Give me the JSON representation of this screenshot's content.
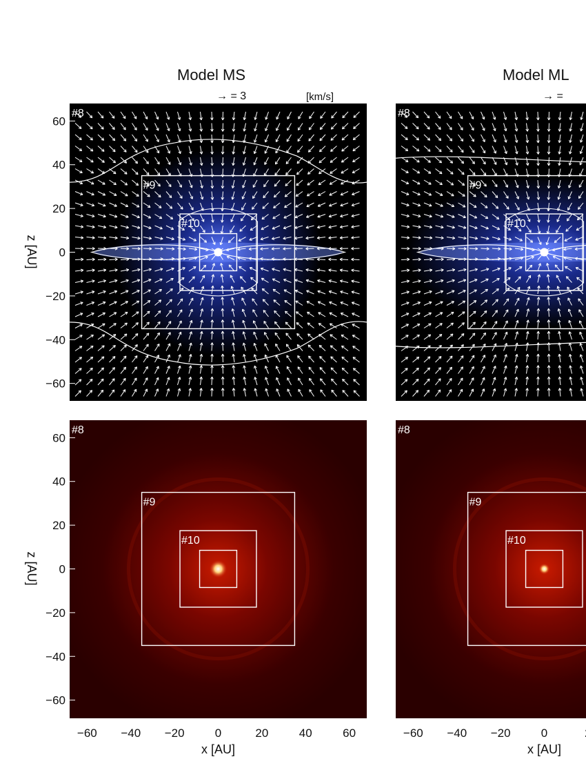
{
  "figure": {
    "models": [
      {
        "title": "Model MS",
        "vector_key": "→ = 3",
        "vector_unit": "[km/s]"
      },
      {
        "title": "Model ML",
        "vector_key": "→ ="
      }
    ],
    "axes": {
      "ylabel": "z [AU]",
      "xlabel": "x [AU]",
      "y_ticks": [
        "60",
        "40",
        "20",
        "0",
        "−20",
        "−40",
        "−60"
      ],
      "x_ticks_left": [
        "−60",
        "−40",
        "−20",
        "0",
        "20",
        "40",
        "60"
      ],
      "x_ticks_right": [
        "−60",
        "−40",
        "−20",
        "0",
        "2"
      ]
    },
    "grid_labels": [
      "#8",
      "#9",
      "#10"
    ]
  },
  "colors": {
    "velocity_background": "#000000",
    "velocity_glow": "#1a2a8a",
    "density_background": "#2a0000",
    "density_core": "#ffffff",
    "overlay": "#ffffff"
  }
}
